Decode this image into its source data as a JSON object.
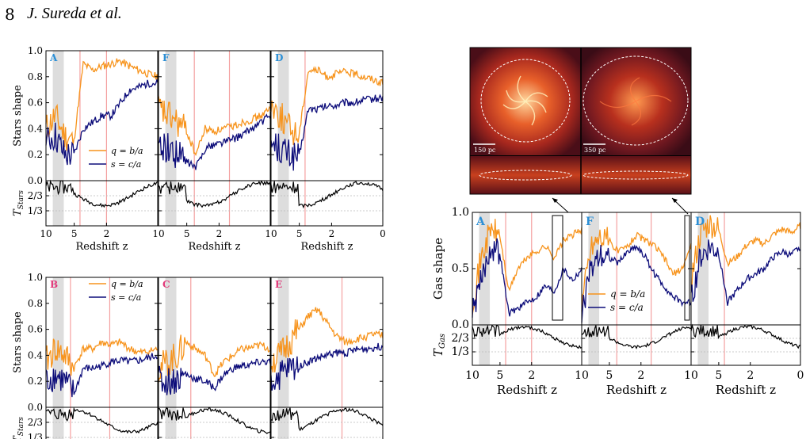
{
  "header": {
    "page_number": "8",
    "authors": "J. Sureda et al."
  },
  "figure": {
    "shape_ticks": [
      "0.0",
      "0.2",
      "0.4",
      "0.6",
      "0.8",
      "1.0"
    ],
    "gas_shape_ticks": [
      "0.0",
      "0.5",
      "1.0"
    ],
    "t_ticks": [
      "2/3",
      "1/3"
    ],
    "redshift_ticks": [
      "10",
      "5",
      "2",
      "0"
    ],
    "stars_shape_label": "Stars shape",
    "gas_shape_label": "Gas shape",
    "t_stars_label": "T",
    "t_stars_sub": "Stars",
    "t_gas_label": "T",
    "t_gas_sub": "Gas",
    "xlabel": "Redshift z",
    "legend_q": "q = b/a",
    "legend_s": "s = c/a",
    "panel_letters_top": [
      "A",
      "F",
      "D"
    ],
    "panel_letters_bottom": [
      "B",
      "C",
      "E"
    ],
    "panel_letters_gas": [
      "A",
      "F",
      "D"
    ],
    "scale_left": "150 pc",
    "scale_right": "350 pc",
    "colors": {
      "q": "#f7941d",
      "s": "#0d0d7a",
      "t": "#000000",
      "letter_blue": "#2b8fd6",
      "letter_pink": "#e23a7a",
      "redline": "#f4a0a0",
      "shade": "#dddddd"
    }
  },
  "chart_data": [
    {
      "type": "line",
      "panel": "stars-A",
      "x": [
        10,
        9,
        8,
        7,
        6,
        5,
        4,
        3,
        2,
        1.5,
        1,
        0.5,
        0
      ],
      "series": [
        {
          "name": "q = b/a",
          "values": [
            0.4,
            0.5,
            0.35,
            0.3,
            0.9,
            0.85,
            0.88,
            0.9,
            0.92,
            0.88,
            0.85,
            0.82,
            0.8
          ]
        },
        {
          "name": "s = c/a",
          "values": [
            0.3,
            0.35,
            0.2,
            0.2,
            0.4,
            0.45,
            0.5,
            0.5,
            0.6,
            0.7,
            0.72,
            0.75,
            0.75
          ]
        }
      ],
      "ylim": [
        0,
        1
      ]
    },
    {
      "type": "line",
      "panel": "stars-F",
      "x": [
        10,
        9,
        8,
        7,
        6,
        5,
        4,
        3,
        2,
        1.5,
        1,
        0.5,
        0
      ],
      "series": [
        {
          "name": "q = b/a",
          "values": [
            0.55,
            0.5,
            0.45,
            0.38,
            0.2,
            0.4,
            0.38,
            0.4,
            0.42,
            0.45,
            0.47,
            0.5,
            0.55
          ]
        },
        {
          "name": "s = c/a",
          "values": [
            0.3,
            0.25,
            0.2,
            0.15,
            0.1,
            0.25,
            0.28,
            0.3,
            0.32,
            0.35,
            0.4,
            0.45,
            0.5
          ]
        }
      ],
      "ylim": [
        0,
        1
      ]
    },
    {
      "type": "line",
      "panel": "stars-D",
      "x": [
        10,
        9,
        8,
        7,
        6,
        5,
        4,
        3,
        2,
        1.5,
        1,
        0.5,
        0
      ],
      "series": [
        {
          "name": "q = b/a",
          "values": [
            0.6,
            0.5,
            0.4,
            0.35,
            0.85,
            0.85,
            0.8,
            0.82,
            0.84,
            0.82,
            0.8,
            0.78,
            0.75
          ]
        },
        {
          "name": "s = c/a",
          "values": [
            0.3,
            0.25,
            0.2,
            0.18,
            0.55,
            0.55,
            0.57,
            0.58,
            0.6,
            0.6,
            0.62,
            0.63,
            0.64
          ]
        }
      ],
      "ylim": [
        0,
        1
      ]
    },
    {
      "type": "line",
      "panel": "stars-B",
      "x": [
        10,
        9,
        8,
        7,
        6,
        5,
        4,
        3,
        2,
        1.5,
        1,
        0.5,
        0
      ],
      "series": [
        {
          "name": "q = b/a",
          "values": [
            0.35,
            0.45,
            0.4,
            0.3,
            0.45,
            0.45,
            0.5,
            0.48,
            0.5,
            0.45,
            0.42,
            0.43,
            0.45
          ]
        },
        {
          "name": "s = c/a",
          "values": [
            0.2,
            0.25,
            0.2,
            0.1,
            0.3,
            0.3,
            0.32,
            0.35,
            0.36,
            0.35,
            0.36,
            0.38,
            0.4
          ]
        }
      ],
      "ylim": [
        0,
        1
      ]
    },
    {
      "type": "line",
      "panel": "stars-C",
      "x": [
        10,
        9,
        8,
        7,
        6,
        5,
        4,
        3,
        2,
        1.5,
        1,
        0.5,
        0
      ],
      "series": [
        {
          "name": "q = b/a",
          "values": [
            0.3,
            0.35,
            0.4,
            0.5,
            0.45,
            0.4,
            0.25,
            0.35,
            0.4,
            0.45,
            0.46,
            0.48,
            0.45
          ]
        },
        {
          "name": "s = c/a",
          "values": [
            0.2,
            0.2,
            0.22,
            0.25,
            0.22,
            0.2,
            0.15,
            0.25,
            0.3,
            0.32,
            0.33,
            0.35,
            0.35
          ]
        }
      ],
      "ylim": [
        0,
        1
      ]
    },
    {
      "type": "line",
      "panel": "stars-E",
      "x": [
        10,
        9,
        8,
        7,
        6,
        5,
        4,
        3,
        2,
        1.5,
        1,
        0.5,
        0
      ],
      "series": [
        {
          "name": "q = b/a",
          "values": [
            0.35,
            0.4,
            0.5,
            0.6,
            0.7,
            0.75,
            0.65,
            0.55,
            0.5,
            0.52,
            0.54,
            0.56,
            0.55
          ]
        },
        {
          "name": "s = c/a",
          "values": [
            0.2,
            0.25,
            0.3,
            0.32,
            0.35,
            0.38,
            0.4,
            0.42,
            0.42,
            0.44,
            0.45,
            0.46,
            0.47
          ]
        }
      ],
      "ylim": [
        0,
        1
      ]
    },
    {
      "type": "line",
      "panel": "gas-A",
      "x": [
        10,
        9,
        8,
        7,
        6,
        5,
        4,
        3,
        2,
        1.5,
        1,
        0.5,
        0
      ],
      "series": [
        {
          "name": "q = b/a",
          "values": [
            0.2,
            0.6,
            0.85,
            0.8,
            0.3,
            0.5,
            0.6,
            0.65,
            0.7,
            0.6,
            0.75,
            0.8,
            0.85
          ]
        },
        {
          "name": "s = c/a",
          "values": [
            0.1,
            0.4,
            0.7,
            0.65,
            0.1,
            0.15,
            0.2,
            0.25,
            0.35,
            0.3,
            0.5,
            0.4,
            0.5
          ]
        }
      ],
      "ylim": [
        0,
        1
      ]
    },
    {
      "type": "line",
      "panel": "gas-F",
      "x": [
        10,
        9,
        8,
        7,
        6,
        5,
        4,
        3,
        2,
        1.5,
        1,
        0.5,
        0
      ],
      "series": [
        {
          "name": "q = b/a",
          "values": [
            0.2,
            0.7,
            0.8,
            0.75,
            0.65,
            0.7,
            0.8,
            0.75,
            0.7,
            0.6,
            0.45,
            0.5,
            0.7
          ]
        },
        {
          "name": "s = c/a",
          "values": [
            0.1,
            0.5,
            0.65,
            0.6,
            0.55,
            0.65,
            0.7,
            0.6,
            0.45,
            0.35,
            0.25,
            0.2,
            0.2
          ]
        }
      ],
      "ylim": [
        0,
        1
      ]
    },
    {
      "type": "line",
      "panel": "gas-D",
      "x": [
        10,
        9,
        8,
        7,
        6,
        5,
        4,
        3,
        2,
        1.5,
        1,
        0.5,
        0
      ],
      "series": [
        {
          "name": "q = b/a",
          "values": [
            0.4,
            0.8,
            0.9,
            0.85,
            0.55,
            0.6,
            0.7,
            0.75,
            0.72,
            0.8,
            0.85,
            0.82,
            0.88
          ]
        },
        {
          "name": "s = c/a",
          "values": [
            0.2,
            0.6,
            0.7,
            0.65,
            0.2,
            0.3,
            0.4,
            0.45,
            0.5,
            0.6,
            0.65,
            0.62,
            0.7
          ]
        }
      ],
      "ylim": [
        0,
        1
      ]
    }
  ]
}
